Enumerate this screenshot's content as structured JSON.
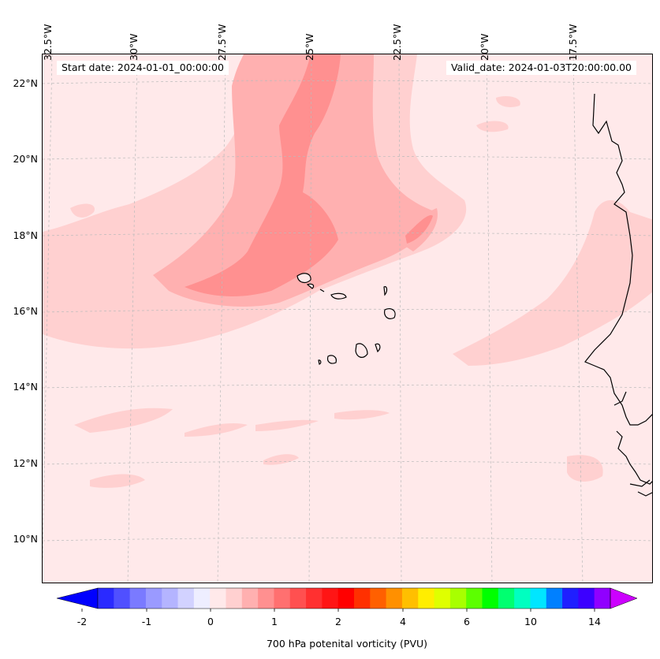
{
  "map": {
    "start_date": "Start date: 2024-01-01_00:00:00",
    "valid_date": "Valid_date: 2024-01-03T20:00:00.00",
    "longitude_labels": [
      "32.5°W",
      "30°W",
      "27.5°W",
      "25°W",
      "22.5°W",
      "20°W",
      "17.5°W"
    ],
    "latitude_labels": [
      "22°N",
      "20°N",
      "18°N",
      "16°N",
      "14°N",
      "12°N",
      "10°N"
    ],
    "background_fill_color": "#ffe9ea",
    "coastline_color": "#000000",
    "gridline_color": "#bbbbbb"
  },
  "colorbar": {
    "label": "700 hPa potenital vorticity (PVU)",
    "tick_labels": [
      "-2",
      "-1",
      "0",
      "1",
      "2",
      "4",
      "6",
      "10",
      "14"
    ],
    "colors": [
      "#0000ff",
      "#2a2aff",
      "#5050ff",
      "#7a7aff",
      "#9a9aff",
      "#b4b4ff",
      "#d2d2ff",
      "#eeeeff",
      "#ffe9ea",
      "#ffd0d0",
      "#ffb0b0",
      "#ff9090",
      "#ff7070",
      "#ff5050",
      "#ff3030",
      "#ff1515",
      "#ff0000",
      "#ff3000",
      "#ff6000",
      "#ff9000",
      "#ffbf00",
      "#ffee00",
      "#dfff00",
      "#a8ff00",
      "#5cff00",
      "#00ff00",
      "#00ff70",
      "#00ffc0",
      "#00e6ff",
      "#0080ff",
      "#1f1fff",
      "#3c00ff",
      "#9000ff",
      "#cc00ff"
    ],
    "extend": "both"
  }
}
